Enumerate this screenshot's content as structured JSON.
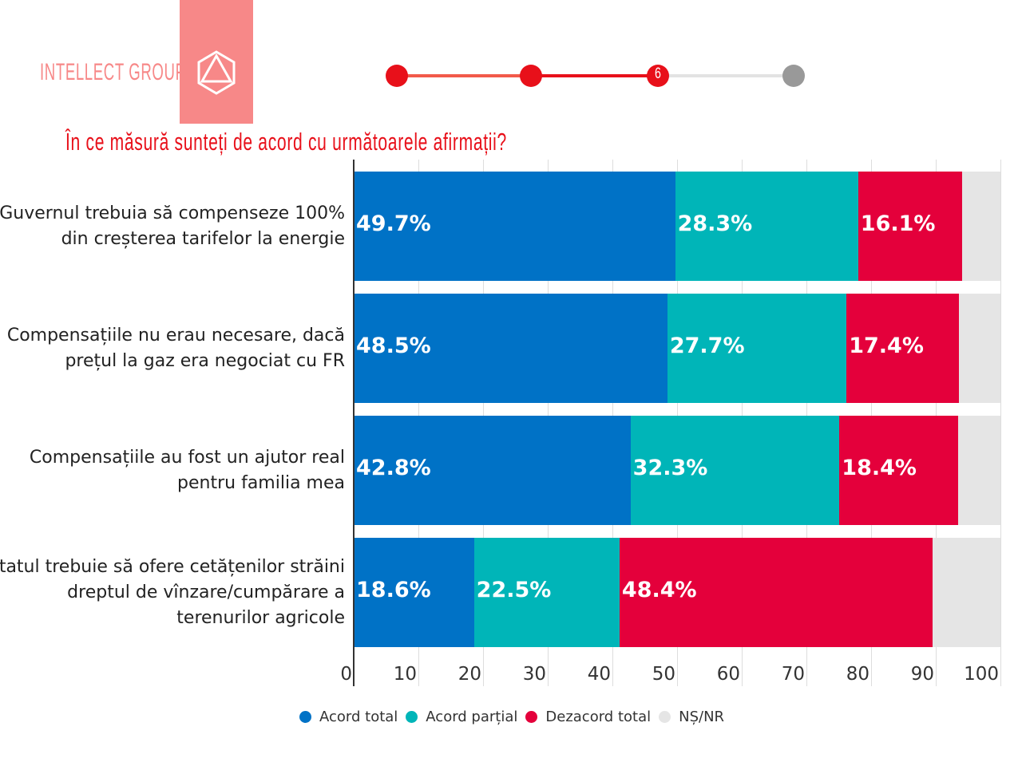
{
  "header": {
    "brand": "INTELLECT GROUP",
    "step_current": "6",
    "colors": {
      "brand": "#f78888",
      "accent": "#e8101a"
    }
  },
  "chart_data": {
    "type": "bar",
    "orientation": "horizontal",
    "stacked": true,
    "title": "În ce măsură sunteți de acord cu următoarele afirmații?",
    "categories": [
      [
        "Guvernul trebuia să compenseze 100%",
        "din creșterea tarifelor la energie"
      ],
      [
        "Compensațiile nu erau necesare, dacă",
        "prețul la gaz era negociat cu FR"
      ],
      [
        "Compensațiile au fost un ajutor real",
        "pentru familia mea"
      ],
      [
        "Statul trebuie să ofere cetățenilor străini",
        "dreptul de vînzare/cumpărare a",
        "terenurilor agricole"
      ]
    ],
    "series": [
      {
        "name": "Acord total",
        "color": "#0072c6",
        "values": [
          49.7,
          48.5,
          42.8,
          18.6
        ],
        "labels": [
          "49.7%",
          "48.5%",
          "42.8%",
          "18.6%"
        ]
      },
      {
        "name": "Acord parțial",
        "color": "#00b5b8",
        "values": [
          28.3,
          27.7,
          32.3,
          22.5
        ],
        "labels": [
          "28.3%",
          "27.7%",
          "32.3%",
          "22.5%"
        ]
      },
      {
        "name": "Dezacord total",
        "color": "#e4003b",
        "values": [
          16.1,
          17.4,
          18.4,
          48.4
        ],
        "labels": [
          "16.1%",
          "17.4%",
          "18.4%",
          "48.4%"
        ]
      },
      {
        "name": "NȘ/NR",
        "color": "#e5e5e5",
        "values": [
          5.9,
          6.4,
          6.5,
          10.5
        ]
      }
    ],
    "xlim": [
      0,
      100
    ],
    "xticks": [
      "0",
      "10",
      "20",
      "30",
      "40",
      "50",
      "60",
      "70",
      "80",
      "90",
      "100"
    ],
    "grid": true,
    "legend": "bottom"
  }
}
